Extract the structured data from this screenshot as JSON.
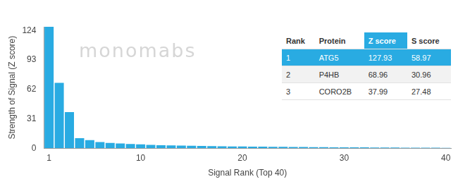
{
  "chart_data": {
    "type": "bar",
    "x_label": "Signal Rank (Top 40)",
    "y_label": "Strength of Signal (Z score)",
    "categories": [
      "1",
      null,
      null,
      null,
      null,
      null,
      null,
      null,
      null,
      "10",
      null,
      null,
      null,
      null,
      null,
      null,
      null,
      null,
      null,
      "20",
      null,
      null,
      null,
      null,
      null,
      null,
      null,
      null,
      null,
      "30",
      null,
      null,
      null,
      null,
      null,
      null,
      null,
      null,
      null,
      "40"
    ],
    "values": [
      127.93,
      68.96,
      37.99,
      10.5,
      8.5,
      6.5,
      5.5,
      5,
      4.5,
      4,
      3.5,
      3.2,
      3,
      2.8,
      2.6,
      2.4,
      2.2,
      2,
      1.9,
      1.8,
      1.7,
      1.6,
      1.5,
      1.4,
      1.3,
      1.2,
      1.1,
      1,
      0.95,
      0.9,
      0.85,
      0.8,
      0.75,
      0.7,
      0.65,
      0.6,
      0.55,
      0.5,
      0.45,
      0.4
    ],
    "color": "#29abe2",
    "ylim": [
      0,
      128
    ],
    "yticks": [
      0,
      31,
      62,
      93,
      124
    ],
    "grid": false,
    "annotations": [
      "monomabs"
    ],
    "table": {
      "columns": [
        "Rank",
        "Protein",
        "Z score",
        "S score"
      ],
      "rows": [
        [
          1,
          "ATG5",
          127.93,
          58.97
        ],
        [
          2,
          "P4HB",
          68.96,
          30.96
        ],
        [
          3,
          "CORO2B",
          37.99,
          27.48
        ]
      ]
    }
  }
}
